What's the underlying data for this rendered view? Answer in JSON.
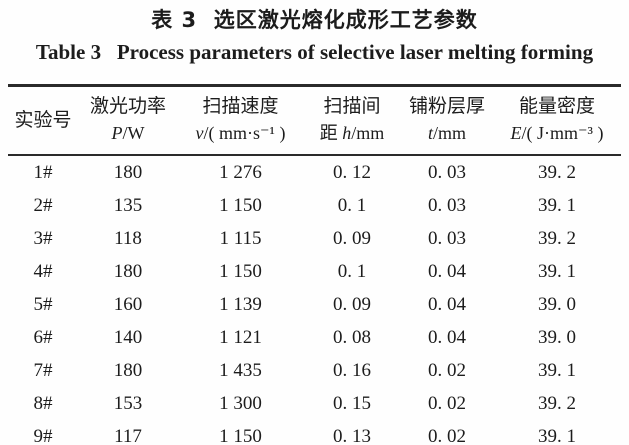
{
  "titles": {
    "zh": "表 3  选区激光熔化成形工艺参数",
    "en": "Table 3   Process parameters of selective laser melting forming"
  },
  "table": {
    "columns": [
      {
        "line1": "实验号",
        "prefix": "",
        "var": "",
        "unit": ""
      },
      {
        "line1": "激光功率",
        "prefix": "",
        "var": "P",
        "unit": "/W"
      },
      {
        "line1": "扫描速度",
        "prefix": "",
        "var": "v",
        "unit": "/( mm·s⁻¹ )"
      },
      {
        "line1": "扫描间",
        "prefix": "距 ",
        "var": "h",
        "unit": "/mm"
      },
      {
        "line1": "铺粉层厚",
        "prefix": "",
        "var": "t",
        "unit": "/mm"
      },
      {
        "line1": "能量密度",
        "prefix": "",
        "var": "E",
        "unit": "/( J·mm⁻³ )"
      }
    ],
    "rows": [
      [
        "1#",
        "180",
        "1 276",
        "0. 12",
        "0. 03",
        "39. 2"
      ],
      [
        "2#",
        "135",
        "1 150",
        "0. 1",
        "0. 03",
        "39. 1"
      ],
      [
        "3#",
        "118",
        "1 115",
        "0. 09",
        "0. 03",
        "39. 2"
      ],
      [
        "4#",
        "180",
        "1 150",
        "0. 1",
        "0. 04",
        "39. 1"
      ],
      [
        "5#",
        "160",
        "1 139",
        "0. 09",
        "0. 04",
        "39. 0"
      ],
      [
        "6#",
        "140",
        "1 121",
        "0. 08",
        "0. 04",
        "39. 0"
      ],
      [
        "7#",
        "180",
        "1 435",
        "0. 16",
        "0. 02",
        "39. 1"
      ],
      [
        "8#",
        "153",
        "1 300",
        "0. 15",
        "0. 02",
        "39. 2"
      ],
      [
        "9#",
        "117",
        "1 150",
        "0. 13",
        "0. 02",
        "39. 1"
      ]
    ]
  },
  "chart_data": {
    "type": "table",
    "title": "表 3 选区激光熔化成形工艺参数 / Table 3 Process parameters of selective laser melting forming",
    "columns": [
      "实验号",
      "激光功率 P/W",
      "扫描速度 v/(mm·s⁻¹)",
      "扫描间距 h/mm",
      "铺粉层厚 t/mm",
      "能量密度 E/(J·mm⁻³)"
    ],
    "rows": [
      [
        "1#",
        180,
        1276,
        0.12,
        0.03,
        39.2
      ],
      [
        "2#",
        135,
        1150,
        0.1,
        0.03,
        39.1
      ],
      [
        "3#",
        118,
        1115,
        0.09,
        0.03,
        39.2
      ],
      [
        "4#",
        180,
        1150,
        0.1,
        0.04,
        39.1
      ],
      [
        "5#",
        160,
        1139,
        0.09,
        0.04,
        39.0
      ],
      [
        "6#",
        140,
        1121,
        0.08,
        0.04,
        39.0
      ],
      [
        "7#",
        180,
        1435,
        0.16,
        0.02,
        39.1
      ],
      [
        "8#",
        153,
        1300,
        0.15,
        0.02,
        39.2
      ],
      [
        "9#",
        117,
        1150,
        0.13,
        0.02,
        39.1
      ]
    ]
  },
  "colors": {
    "text": "#1c1c1c",
    "rule": "#2a2a2a",
    "background": "#fefefe"
  }
}
